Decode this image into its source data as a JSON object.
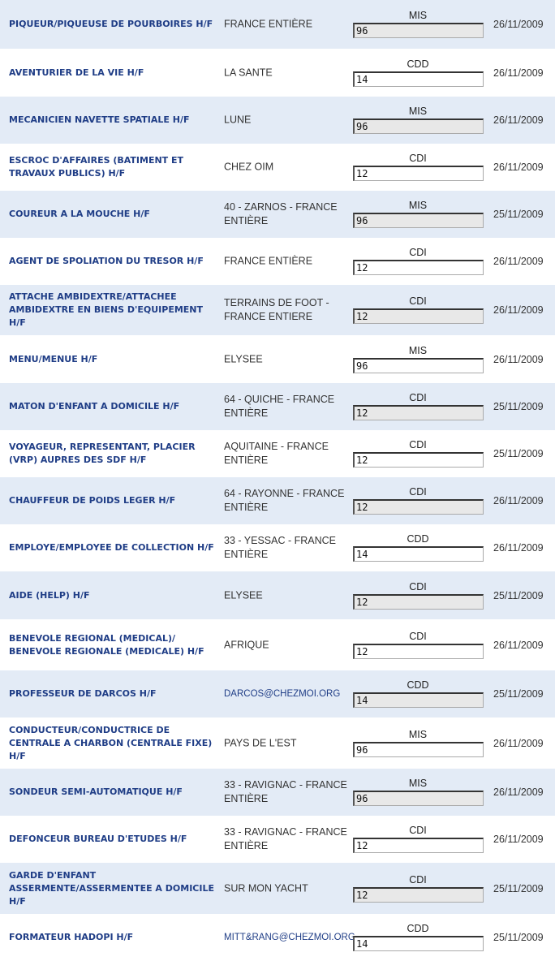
{
  "jobs": [
    {
      "title": "PIQUEUR/PIQUEUSE DE POURBOIRES H/F",
      "location": "FRANCE ENTIÈRE",
      "type": "MIS",
      "value": "96",
      "date": "26/11/2009"
    },
    {
      "title": "AVENTURIER DE LA VIE H/F",
      "location": "LA SANTE",
      "type": "CDD",
      "value": "14",
      "date": "26/11/2009"
    },
    {
      "title": "MECANICIEN NAVETTE SPATIALE H/F",
      "location": "LUNE",
      "type": "MIS",
      "value": "96",
      "date": "26/11/2009"
    },
    {
      "title": "ESCROC D'AFFAIRES (BATIMENT ET TRAVAUX PUBLICS) H/F",
      "location": "CHEZ OIM",
      "type": "CDI",
      "value": "12",
      "date": "26/11/2009"
    },
    {
      "title": "COUREUR A LA MOUCHE H/F",
      "location": "40 - ZARNOS - FRANCE ENTIÈRE",
      "type": "MIS",
      "value": "96",
      "date": "25/11/2009"
    },
    {
      "title": "AGENT DE SPOLIATION DU TRESOR H/F",
      "location": "FRANCE ENTIÈRE",
      "type": "CDI",
      "value": "12",
      "date": "26/11/2009"
    },
    {
      "title": "ATTACHE AMBIDEXTRE/ATTACHEE AMBIDEXTRE EN BIENS D'EQUIPEMENT H/F",
      "location": "TERRAINS DE FOOT - FRANCE ENTIERE",
      "type": "CDI",
      "value": "12",
      "date": "26/11/2009"
    },
    {
      "title": "MENU/MENUE H/F",
      "location": "ELYSEE",
      "type": "MIS",
      "value": "96",
      "date": "26/11/2009"
    },
    {
      "title": "MATON D'ENFANT A DOMICILE H/F",
      "location": "64 - QUICHE - FRANCE ENTIÈRE",
      "type": "CDI",
      "value": "12",
      "date": "25/11/2009"
    },
    {
      "title": "VOYAGEUR, REPRESENTANT, PLACIER (VRP) AUPRES DES SDF H/F",
      "location": "AQUITAINE - FRANCE ENTIÈRE",
      "type": "CDI",
      "value": "12",
      "date": "25/11/2009"
    },
    {
      "title": "CHAUFFEUR DE POIDS LEGER H/F",
      "location": "64 - RAYONNE - FRANCE ENTIÈRE",
      "type": "CDI",
      "value": "12",
      "date": "26/11/2009"
    },
    {
      "title": "EMPLOYE/EMPLOYEE DE COLLECTION H/F",
      "location": "33 - YESSAC - FRANCE ENTIÈRE",
      "type": "CDD",
      "value": "14",
      "date": "26/11/2009"
    },
    {
      "title": "AIDE (HELP) H/F",
      "location": "ELYSEE",
      "type": "CDI",
      "value": "12",
      "date": "25/11/2009"
    },
    {
      "title": "BENEVOLE REGIONAL (MEDICAL)/ BENEVOLE REGIONALE (MEDICALE) H/F",
      "location": "AFRIQUE",
      "type": "CDI",
      "value": "12",
      "date": "26/11/2009"
    },
    {
      "title": "PROFESSEUR DE DARCOS H/F",
      "location": "DARCOS@CHEZMOI.ORG",
      "location_is_link": true,
      "type": "CDD",
      "value": "14",
      "date": "25/11/2009"
    },
    {
      "title": "CONDUCTEUR/CONDUCTRICE DE CENTRALE A CHARBON (CENTRALE FIXE) H/F",
      "location": "PAYS DE L'EST",
      "type": "MIS",
      "value": "96",
      "date": "26/11/2009"
    },
    {
      "title": "SONDEUR SEMI-AUTOMATIQUE H/F",
      "location": "33 - RAVIGNAC - FRANCE ENTIÈRE",
      "type": "MIS",
      "value": "96",
      "date": "26/11/2009"
    },
    {
      "title": "DEFONCEUR BUREAU D'ETUDES H/F",
      "location": "33 - RAVIGNAC - FRANCE ENTIÈRE",
      "type": "CDI",
      "value": "12",
      "date": "26/11/2009"
    },
    {
      "title": "GARDE D'ENFANT ASSERMENTE/ASSERMENTEE A DOMICILE H/F",
      "location": "SUR MON YACHT",
      "type": "CDI",
      "value": "12",
      "date": "25/11/2009"
    },
    {
      "title": "FORMATEUR HADOPI H/F",
      "location": "MITT&RANG@CHEZMOI.ORG",
      "location_is_link": true,
      "type": "CDD",
      "value": "14",
      "date": "25/11/2009"
    }
  ],
  "colors": {
    "row_alt": "#e3ebf6",
    "title": "#1f3d86"
  }
}
